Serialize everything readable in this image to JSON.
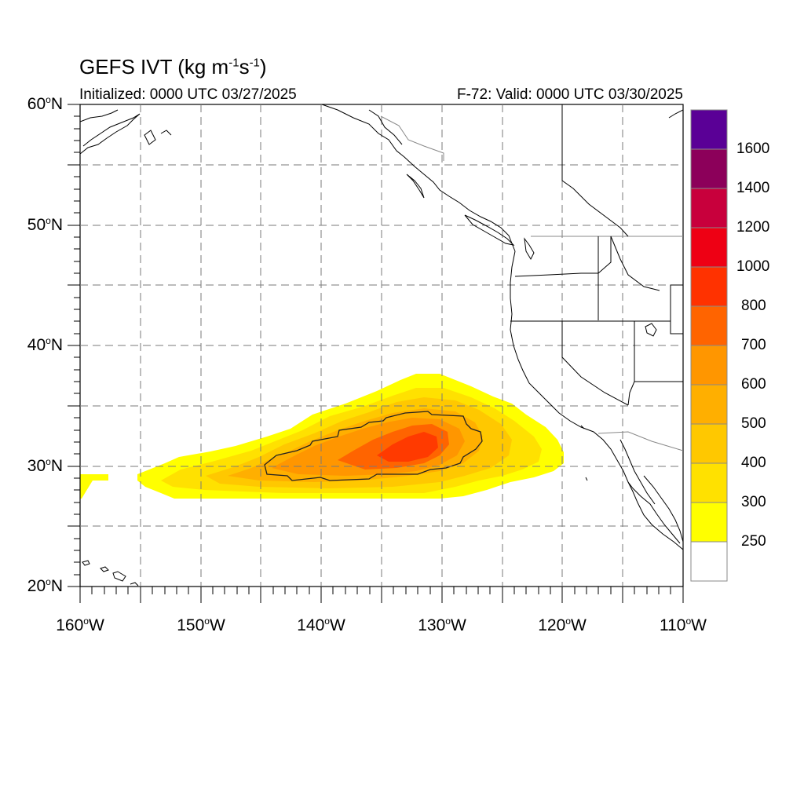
{
  "title": {
    "main": "GEFS IVT (kg m",
    "sup1": "-1",
    "mid": "s",
    "sup2": "-1",
    "end": ")"
  },
  "subtitle_left": "Initialized: 0000 UTC 03/27/2025",
  "subtitle_right": "F-72: Valid: 0000 UTC 03/30/2025",
  "map": {
    "lon_range": [
      -160,
      -110
    ],
    "lat_range": [
      20,
      60
    ],
    "lat_labels": [
      {
        "value": 60,
        "text": "60",
        "hemi": "N"
      },
      {
        "value": 50,
        "text": "50",
        "hemi": "N"
      },
      {
        "value": 40,
        "text": "40",
        "hemi": "N"
      },
      {
        "value": 30,
        "text": "30",
        "hemi": "N"
      },
      {
        "value": 20,
        "text": "20",
        "hemi": "N"
      }
    ],
    "lon_labels": [
      {
        "value": -160,
        "text": "160",
        "hemi": "W"
      },
      {
        "value": -150,
        "text": "150",
        "hemi": "W"
      },
      {
        "value": -140,
        "text": "140",
        "hemi": "W"
      },
      {
        "value": -130,
        "text": "130",
        "hemi": "W"
      },
      {
        "value": -120,
        "text": "120",
        "hemi": "W"
      },
      {
        "value": -110,
        "text": "110",
        "hemi": "W"
      }
    ],
    "degree_symbol": "o",
    "grid": "dashed every 5 degrees"
  },
  "colorbar": {
    "levels": [
      "250",
      "300",
      "400",
      "500",
      "600",
      "700",
      "800",
      "1000",
      "1200",
      "1400",
      "1600"
    ],
    "colors": [
      "#ffffff",
      "#ffff00",
      "#ffe100",
      "#ffc800",
      "#ffaf00",
      "#ff9600",
      "#ff6400",
      "#ff3200",
      "#ee0014",
      "#c8003c",
      "#8c005a",
      "#5a0096"
    ]
  },
  "ivt_field": {
    "units": "kg m-1 s-1",
    "contour_overlay": 500,
    "core_center": {
      "lon": -133,
      "lat": 31.5
    },
    "max_estimate": 750
  }
}
